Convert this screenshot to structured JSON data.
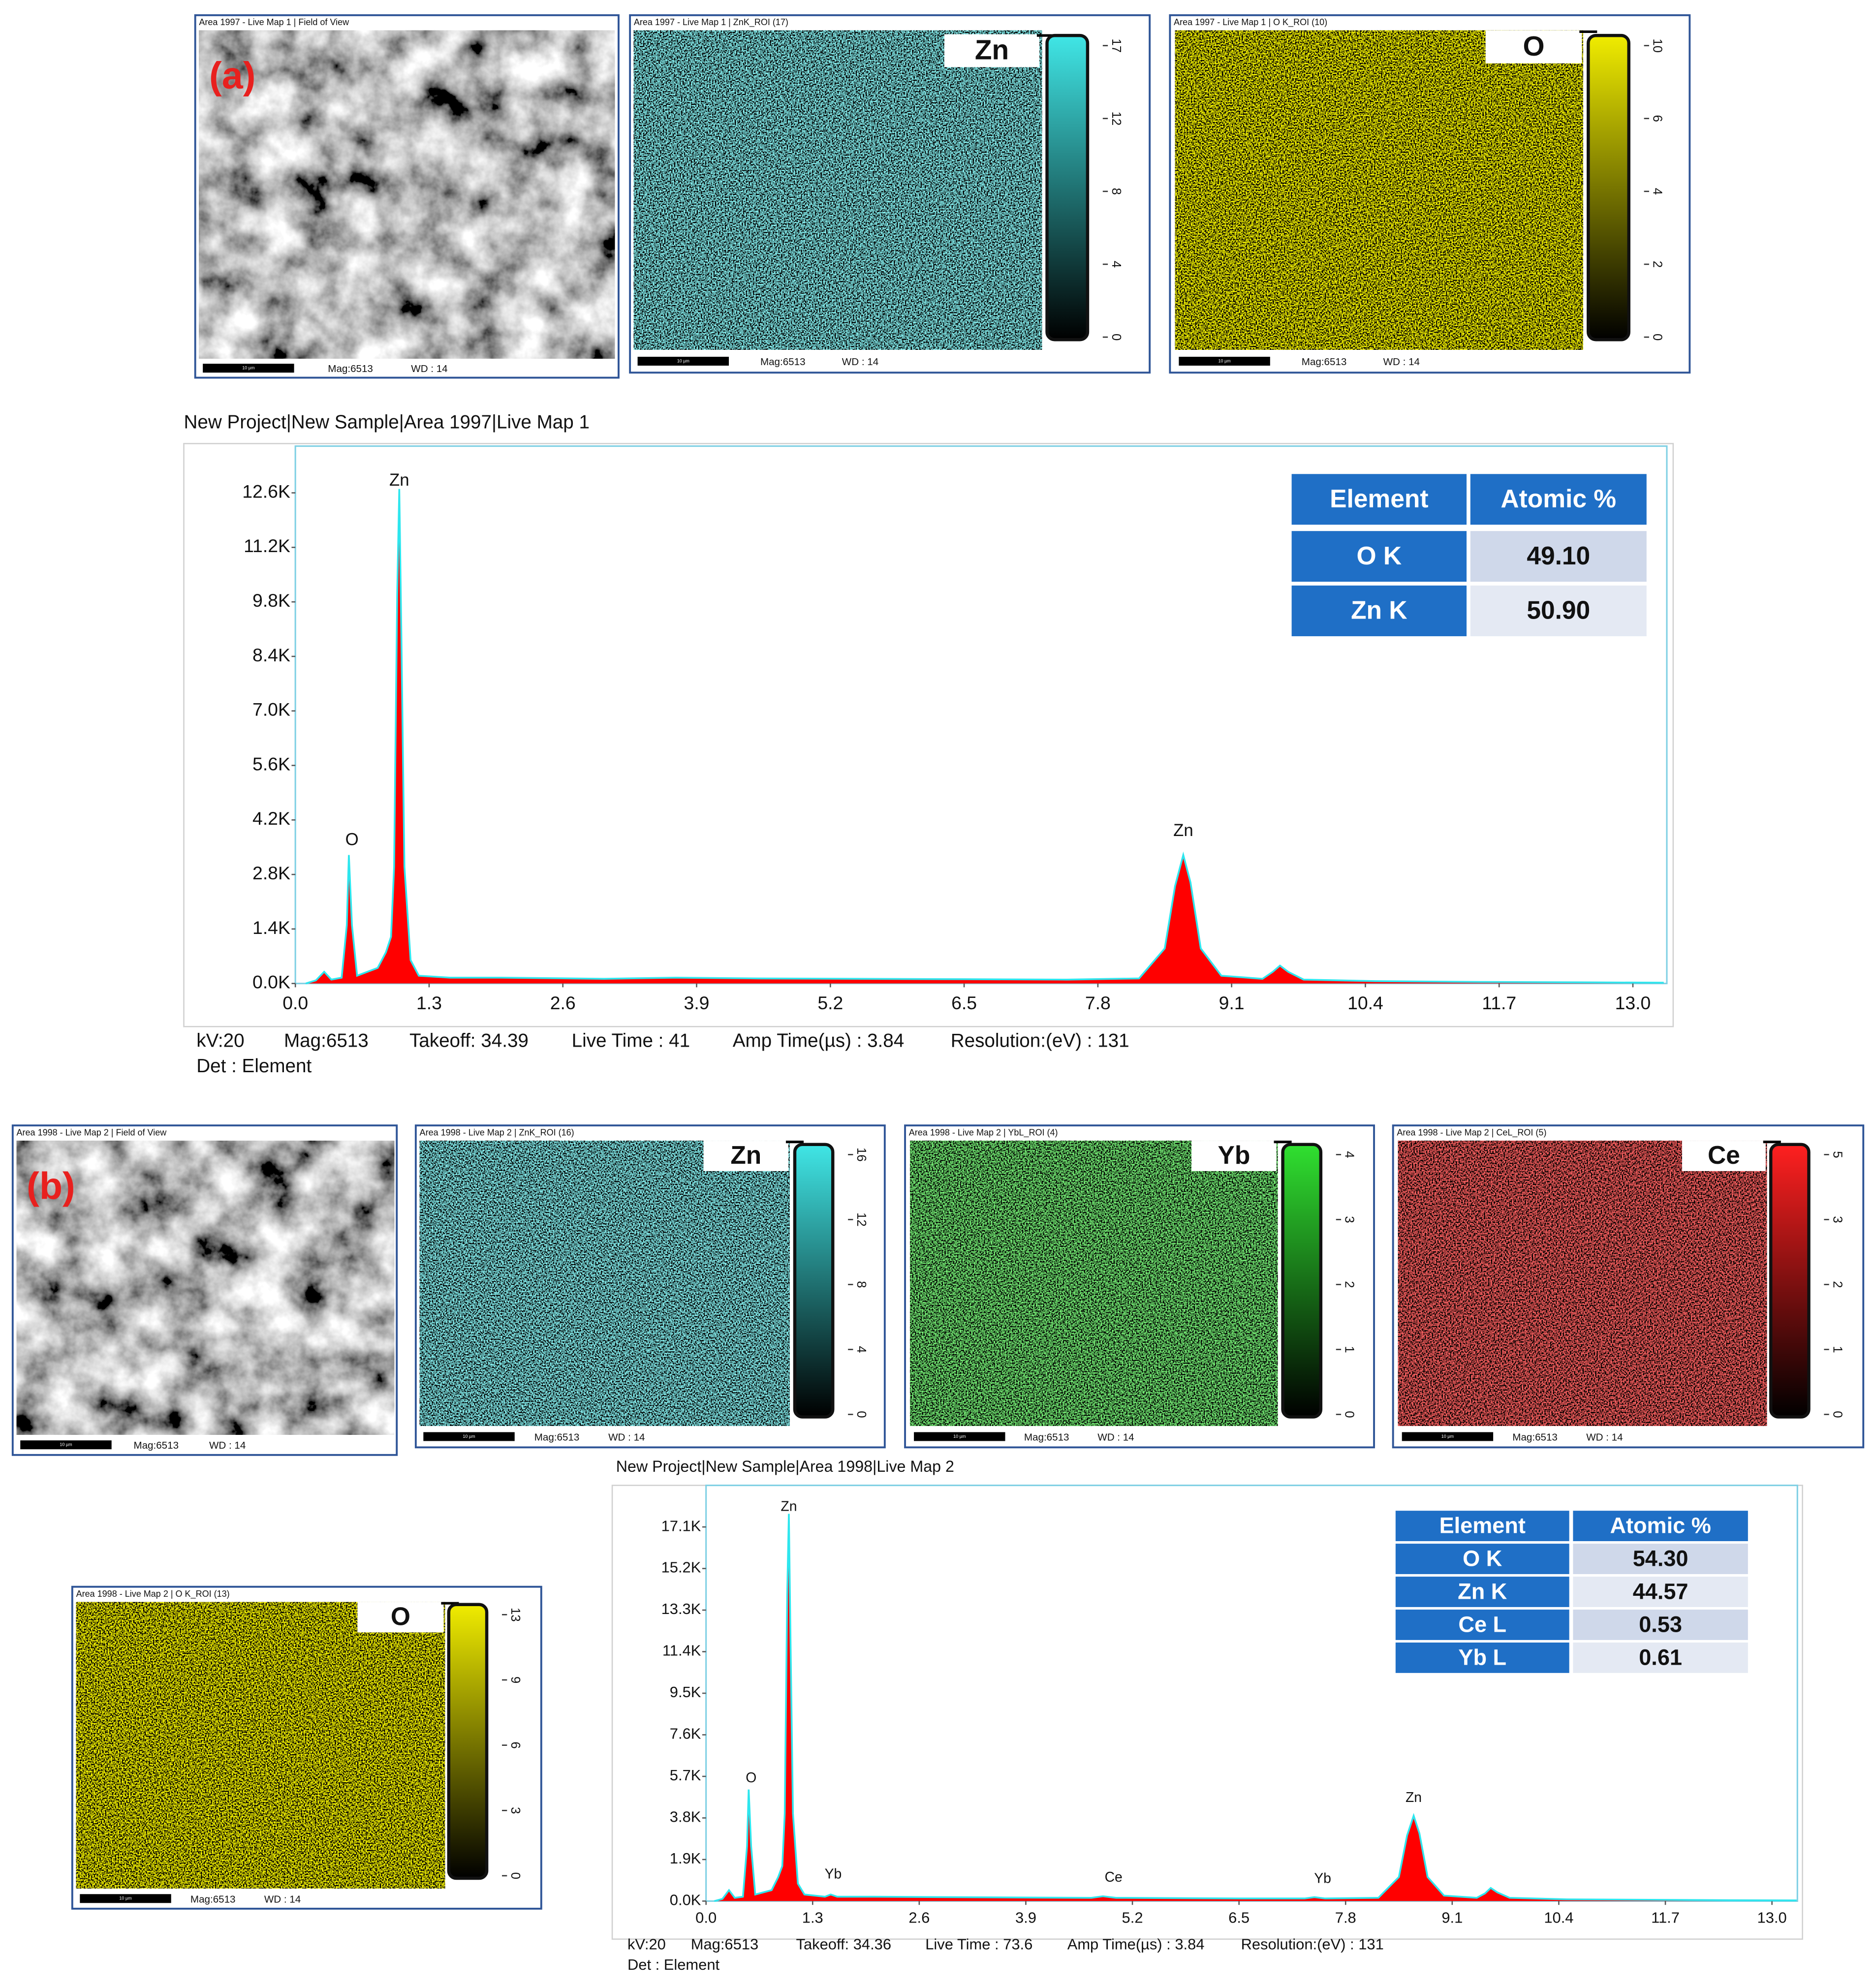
{
  "maps": [
    {
      "header": "Area 1997 - Live Map 1 | Field of View",
      "panel_label": "(a)",
      "scale_bar": "10 µm",
      "mag": "Mag:6513",
      "wd": "WD : 14"
    },
    {
      "header": "Area 1997 - Live Map 1 | ZnK_ROI (17)",
      "element": "Zn",
      "color": "#40e6e6",
      "ticks": [
        0,
        4,
        8,
        12,
        17
      ],
      "scale_bar": "10 µm",
      "mag": "Mag:6513",
      "wd": "WD : 14"
    },
    {
      "header": "Area 1997 - Live Map 1 | O K_ROI (10)",
      "element": "O",
      "color": "#f0ec00",
      "ticks": [
        0,
        2,
        4,
        6,
        10
      ],
      "scale_bar": "10 µm",
      "mag": "Mag:6513",
      "wd": "WD : 14"
    },
    {
      "header": "Area 1998 - Live Map 2 | Field of View",
      "panel_label": "(b)",
      "scale_bar": "10 µm",
      "mag": "Mag:6513",
      "wd": "WD : 14"
    },
    {
      "header": "Area 1998 - Live Map 2 | ZnK_ROI (16)",
      "element": "Zn",
      "color": "#40e6e6",
      "ticks": [
        0,
        4,
        8,
        12,
        16
      ],
      "scale_bar": "10 µm",
      "mag": "Mag:6513",
      "wd": "WD : 14"
    },
    {
      "header": "Area 1998 - Live Map 2 | YbL_ROI (4)",
      "element": "Yb",
      "color": "#30e030",
      "ticks": [
        0,
        1,
        2,
        3,
        4
      ],
      "scale_bar": "10 µm",
      "mag": "Mag:6513",
      "wd": "WD : 14"
    },
    {
      "header": "Area 1998 - Live Map 2 | CeL_ROI (5)",
      "element": "Ce",
      "color": "#ff2020",
      "ticks": [
        0,
        1,
        2,
        3,
        5
      ],
      "scale_bar": "10 µm",
      "mag": "Mag:6513",
      "wd": "WD : 14"
    },
    {
      "header": "Area 1998 - Live Map 2 | O K_ROI (13)",
      "element": "O",
      "color": "#f0ec00",
      "ticks": [
        0,
        3,
        6,
        9,
        13
      ],
      "scale_bar": "10 µm",
      "mag": "Mag:6513",
      "wd": "WD : 14"
    }
  ],
  "chart_data": [
    {
      "type": "area",
      "title": "New Project|New Sample|Area 1997|Live Map 1",
      "x": [
        0.1,
        0.2,
        0.28,
        0.35,
        0.45,
        0.5,
        0.52,
        0.55,
        0.6,
        0.7,
        0.8,
        0.88,
        0.93,
        0.96,
        0.99,
        1.01,
        1.03,
        1.06,
        1.12,
        1.2,
        1.5,
        2.0,
        3.0,
        3.7,
        4.5,
        5.5,
        6.5,
        7.5,
        8.2,
        8.45,
        8.55,
        8.63,
        8.7,
        8.8,
        9.0,
        9.4,
        9.5,
        9.57,
        9.65,
        9.8,
        10.5,
        11.5,
        12.5,
        13.3
      ],
      "values": [
        0,
        80,
        300,
        100,
        150,
        1500,
        3300,
        1500,
        200,
        300,
        400,
        800,
        1200,
        3000,
        10000,
        12700,
        9000,
        3000,
        600,
        200,
        150,
        150,
        120,
        150,
        130,
        120,
        110,
        100,
        130,
        900,
        2500,
        3300,
        2600,
        900,
        200,
        120,
        300,
        460,
        300,
        100,
        60,
        40,
        30,
        20
      ],
      "color": "#ff0000",
      "line_color": "#2ee6ee",
      "xlim": [
        0,
        13.33
      ],
      "xticks": [
        {
          "value": 0,
          "label": "0.0"
        },
        1.3,
        2.6,
        3.9,
        5.2,
        6.5,
        7.8,
        9.1,
        10.4,
        11.7,
        {
          "value": 13,
          "label": "13.0"
        }
      ],
      "ylim": [
        0,
        13800
      ],
      "yticks": [
        {
          "value": 0,
          "label": "0.0K"
        },
        {
          "value": 1400,
          "label": "1.4K"
        },
        {
          "value": 2800,
          "label": "2.8K"
        },
        {
          "value": 4200,
          "label": "4.2K"
        },
        {
          "value": 5600,
          "label": "5.6K"
        },
        {
          "value": 7000,
          "label": "7.0K"
        },
        {
          "value": 8400,
          "label": "8.4K"
        },
        {
          "value": 9800,
          "label": "9.8K"
        },
        {
          "value": 11200,
          "label": "11.2K"
        },
        {
          "value": 12600,
          "label": "12.6K"
        }
      ],
      "annotations": [
        {
          "text": "O",
          "x": 0.55,
          "y": 3670
        },
        {
          "text": "Zn",
          "x": 1.01,
          "y": 12900
        },
        {
          "text": "Zn",
          "x": 8.63,
          "y": 3900
        }
      ],
      "info": [
        [
          "kV:20",
          "Mag:6513",
          "Takeoff: 34.39",
          "Live Time : 41",
          "Amp Time(µs) : 3.84",
          "Resolution:(eV) : 131"
        ],
        [
          "Det : Element"
        ]
      ],
      "table": {
        "columns": [
          "Element",
          "Atomic %"
        ],
        "rows": [
          [
            "O K",
            "49.10"
          ],
          [
            "Zn K",
            "50.90"
          ]
        ]
      }
    },
    {
      "type": "area",
      "title": "New Project|New Sample|Area 1998|Live Map 2",
      "x": [
        0.1,
        0.2,
        0.28,
        0.35,
        0.45,
        0.5,
        0.52,
        0.55,
        0.6,
        0.7,
        0.8,
        0.88,
        0.93,
        0.96,
        0.99,
        1.01,
        1.03,
        1.06,
        1.12,
        1.2,
        1.45,
        1.52,
        1.6,
        2.0,
        3.0,
        4.0,
        4.7,
        4.84,
        5.0,
        5.5,
        6.5,
        7.3,
        7.42,
        7.55,
        8.2,
        8.45,
        8.55,
        8.63,
        8.7,
        8.8,
        9.0,
        9.4,
        9.5,
        9.57,
        9.65,
        9.8,
        10.5,
        11.5,
        12.5,
        13.3
      ],
      "values": [
        0,
        100,
        500,
        150,
        200,
        2500,
        5100,
        2500,
        300,
        400,
        500,
        1100,
        1600,
        4000,
        14000,
        17700,
        12000,
        4000,
        800,
        300,
        200,
        300,
        200,
        200,
        180,
        160,
        150,
        220,
        150,
        140,
        120,
        120,
        180,
        120,
        150,
        1100,
        3000,
        3900,
        3100,
        1100,
        250,
        150,
        350,
        600,
        400,
        150,
        80,
        60,
        40,
        30
      ],
      "color": "#ff0000",
      "line_color": "#2ee6ee",
      "xlim": [
        0,
        13.31
      ],
      "xticks": [
        {
          "value": 0,
          "label": "0.0"
        },
        1.3,
        2.6,
        3.9,
        5.2,
        6.5,
        7.8,
        9.1,
        10.4,
        11.7,
        {
          "value": 13,
          "label": "13.0"
        }
      ],
      "ylim": [
        0,
        19000
      ],
      "yticks": [
        {
          "value": 0,
          "label": "0.0K"
        },
        {
          "value": 1900,
          "label": "1.9K"
        },
        {
          "value": 3800,
          "label": "3.8K"
        },
        {
          "value": 5700,
          "label": "5.7K"
        },
        {
          "value": 7600,
          "label": "7.6K"
        },
        {
          "value": 9500,
          "label": "9.5K"
        },
        {
          "value": 11400,
          "label": "11.4K"
        },
        {
          "value": 13300,
          "label": "13.3K"
        },
        {
          "value": 15200,
          "label": "15.2K"
        },
        {
          "value": 17100,
          "label": "17.1K"
        }
      ],
      "annotations": [
        {
          "text": "O",
          "x": 0.55,
          "y": 5600
        },
        {
          "text": "Zn",
          "x": 1.01,
          "y": 18000
        },
        {
          "text": "Yb",
          "x": 1.55,
          "y": 1200
        },
        {
          "text": "Ce",
          "x": 4.97,
          "y": 1050
        },
        {
          "text": "Yb",
          "x": 7.52,
          "y": 1000
        },
        {
          "text": "Zn",
          "x": 8.63,
          "y": 4700
        }
      ],
      "info": [
        [
          "kV:20",
          "Mag:6513",
          "Takeoff: 34.36",
          "Live Time : 73.6",
          "Amp Time(µs) : 3.84",
          "Resolution:(eV) : 131"
        ],
        [
          "Det : Element"
        ]
      ],
      "table": {
        "columns": [
          "Element",
          "Atomic %"
        ],
        "rows": [
          [
            "O K",
            "54.30"
          ],
          [
            "Zn K",
            "44.57"
          ],
          [
            "Ce L",
            "0.53"
          ],
          [
            "Yb L",
            "0.61"
          ]
        ]
      }
    }
  ]
}
